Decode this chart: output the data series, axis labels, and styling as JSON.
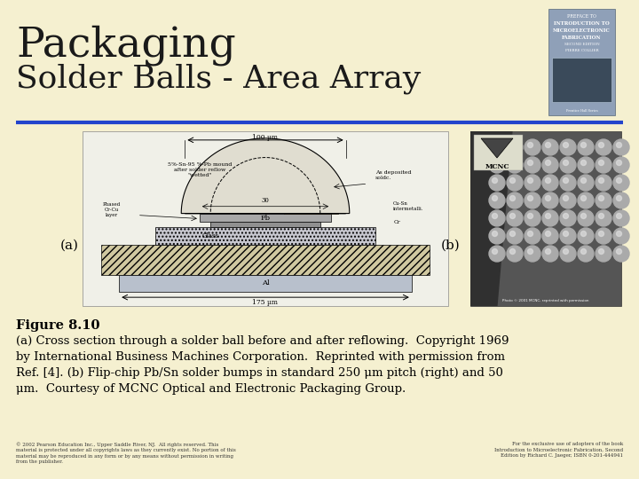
{
  "bg_color": "#f5f0d0",
  "title_line1": "Packaging",
  "title_line2": "Solder Balls - Area Array",
  "title_color": "#1a1a1a",
  "title1_fontsize": 34,
  "title2_fontsize": 26,
  "separator_color": "#2244cc",
  "label_a": "(a)",
  "label_b": "(b)",
  "figure_label": "Figure 8.10",
  "caption_line1": "(a) Cross section through a solder ball before and after reflowing.  Copyright 1969",
  "caption_line2": "by International Business Machines Corporation.  Reprinted with permission from",
  "caption_line3": "Ref. [4]. (b) Flip-chip Pb/Sn solder bumps in standard 250 μm pitch (right) and 50",
  "caption_line4": "μm.  Courtesy of MCNC Optical and Electronic Packaging Group.",
  "footer_left": "© 2002 Pearson Education Inc., Upper Saddle River, NJ.  All rights reserved. This\nmaterial is protected under all copyrights laws as they currently exist. No portion of this\nmaterial may be reproduced in any form or by any means without permission in writing\nfrom the publisher.",
  "footer_right": "For the exclusive use of adopters of the book\nIntroduction to Microelectronic Fabrication, Second\nEdition by Richard C. Jaeger, ISBN 0-201-444941"
}
